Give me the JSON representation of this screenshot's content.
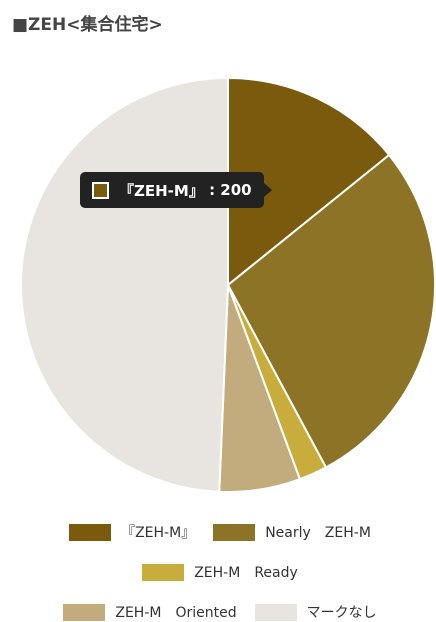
{
  "chart_data": {
    "type": "pie",
    "title": "■ZEH<集合住宅>",
    "categories": [
      "『ZEH-M』",
      "Nearly　ZEH-M",
      "ZEH-M　Ready",
      "ZEH-M　Oriented",
      "マークなし"
    ],
    "values": [
      200,
      394,
      31,
      89,
      695
    ],
    "colors": [
      "#7a5a0c",
      "#8c7325",
      "#c8ad3c",
      "#c2ab7c",
      "#e8e4df"
    ]
  }
}
